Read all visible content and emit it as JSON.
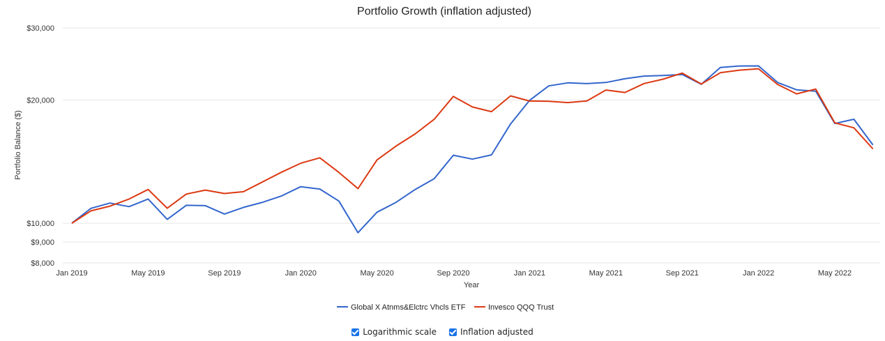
{
  "colors": {
    "series1": "#3366cc",
    "series2": "#dc3912",
    "grid": "#e6e6e6",
    "checkbox": "#1a73e8"
  },
  "controls": {
    "log_scale_label": "Logarithmic scale",
    "inflation_label": "Inflation adjusted",
    "log_scale_checked": true,
    "inflation_checked": true
  },
  "chart_data": {
    "type": "line",
    "title": "Portfolio Growth (inflation adjusted)",
    "xlabel": "Year",
    "ylabel": "Portfolio Balance ($)",
    "yscale": "log",
    "ylim": [
      8000,
      30000
    ],
    "xlim": [
      "2019-01",
      "2022-07"
    ],
    "grid": true,
    "legend_position": "bottom",
    "y_ticks": [
      {
        "value": 30000,
        "label": "$30,000"
      },
      {
        "value": 20000,
        "label": "$20,000"
      },
      {
        "value": 10000,
        "label": "$10,000"
      },
      {
        "value": 9000,
        "label": "$9,000"
      },
      {
        "value": 8000,
        "label": "$8,000"
      }
    ],
    "x_ticks": [
      {
        "value": "2019-01",
        "label": "Jan 2019"
      },
      {
        "value": "2019-05",
        "label": "May 2019"
      },
      {
        "value": "2019-09",
        "label": "Sep 2019"
      },
      {
        "value": "2020-01",
        "label": "Jan 2020"
      },
      {
        "value": "2020-05",
        "label": "May 2020"
      },
      {
        "value": "2020-09",
        "label": "Sep 2020"
      },
      {
        "value": "2021-01",
        "label": "Jan 2021"
      },
      {
        "value": "2021-05",
        "label": "May 2021"
      },
      {
        "value": "2021-09",
        "label": "Sep 2021"
      },
      {
        "value": "2022-01",
        "label": "Jan 2022"
      },
      {
        "value": "2022-05",
        "label": "May 2022"
      }
    ],
    "x": [
      "2019-01",
      "2019-02",
      "2019-03",
      "2019-04",
      "2019-05",
      "2019-06",
      "2019-07",
      "2019-08",
      "2019-09",
      "2019-10",
      "2019-11",
      "2019-12",
      "2020-01",
      "2020-02",
      "2020-03",
      "2020-04",
      "2020-05",
      "2020-06",
      "2020-07",
      "2020-08",
      "2020-09",
      "2020-10",
      "2020-11",
      "2020-12",
      "2021-01",
      "2021-02",
      "2021-03",
      "2021-04",
      "2021-05",
      "2021-06",
      "2021-07",
      "2021-08",
      "2021-09",
      "2021-10",
      "2021-11",
      "2021-12",
      "2022-01",
      "2022-02",
      "2022-03",
      "2022-04",
      "2022-05",
      "2022-06",
      "2022-07"
    ],
    "series": [
      {
        "name": "Global X Atnms&Elctrc Vhcls ETF",
        "values": [
          10000,
          10870,
          11200,
          10980,
          11460,
          10220,
          11060,
          11040,
          10530,
          10930,
          11250,
          11660,
          12280,
          12120,
          11330,
          9480,
          10640,
          11250,
          12090,
          12850,
          14660,
          14340,
          14690,
          17480,
          19960,
          21650,
          22020,
          21930,
          22070,
          22540,
          22880,
          22960,
          23080,
          21840,
          24020,
          24220,
          24230,
          22070,
          21180,
          21010,
          17520,
          17950,
          15530
        ]
      },
      {
        "name": "Invesco QQQ Trust",
        "values": [
          10000,
          10720,
          11010,
          11460,
          12090,
          10880,
          11780,
          12050,
          11820,
          11940,
          12620,
          13330,
          14010,
          14450,
          13310,
          12150,
          14280,
          15440,
          16530,
          17940,
          20400,
          19230,
          18730,
          20470,
          19880,
          19860,
          19710,
          19900,
          21150,
          20860,
          21940,
          22490,
          23270,
          21880,
          23310,
          23650,
          23840,
          21830,
          20700,
          21270,
          17590,
          17100,
          15190
        ]
      }
    ]
  }
}
